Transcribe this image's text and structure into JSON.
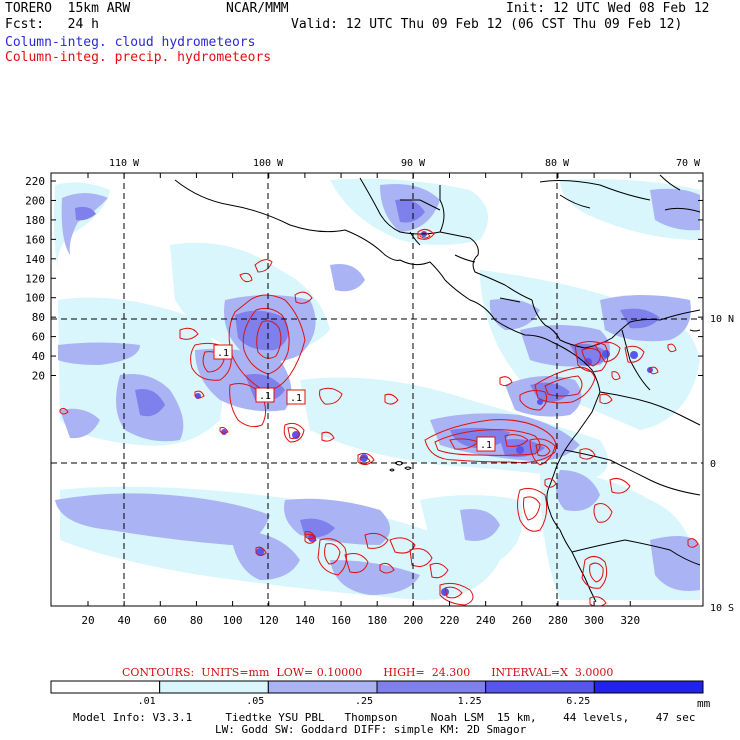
{
  "header": {
    "model": "TORERO  15km ARW",
    "center": "NCAR/MMM",
    "init": "Init: 12 UTC Wed 08 Feb 12",
    "fcst": "Fcst:   24 h",
    "valid": "Valid: 12 UTC Thu 09 Feb 12 (06 CST Thu 09 Feb 12)",
    "field1": "Column-integ. cloud hydrometeors",
    "field2": "Column-integ. precip. hydrometeors"
  },
  "colors": {
    "field1": "#2a2ad8",
    "field2": "#e01010",
    "coast": "#000000"
  },
  "map": {
    "lon_labels": [
      "110 W",
      "100 W",
      "90 W",
      "80 W",
      "70 W"
    ],
    "lat_labels": [
      "10 N",
      "0",
      "10 S"
    ],
    "y_ticks": [
      "220",
      "200",
      "180",
      "160",
      "140",
      "120",
      "100",
      "80",
      "60",
      "40",
      "20"
    ],
    "x_ticks": [
      "20",
      "40",
      "60",
      "80",
      "100",
      "120",
      "140",
      "160",
      "180",
      "200",
      "220",
      "240",
      "260",
      "280",
      "300",
      "320"
    ],
    "contour_labels": [
      ".1",
      ".1",
      ".1",
      ".1"
    ]
  },
  "contours_info": "CONTOURS:  UNITS=mm  LOW= 0.10000      HIGH=  24.300      INTERVAL=X  3.0000",
  "colorbar": {
    "levels": [
      ".01",
      ".05",
      ".25",
      "1.25",
      "6.25"
    ],
    "unit": "mm",
    "colors": [
      "#ffffff",
      "#d8f6fc",
      "#aab4f4",
      "#7f80ec",
      "#5656ee",
      "#2222ee"
    ]
  },
  "footer": {
    "line1": "Model Info: V3.3.1     Tiedtke YSU PBL   Thompson     Noah LSM  15 km,    44 levels,    47 sec",
    "line2": "LW: Godd SW: Goddard DIFF: simple KM: 2D Smagor"
  }
}
